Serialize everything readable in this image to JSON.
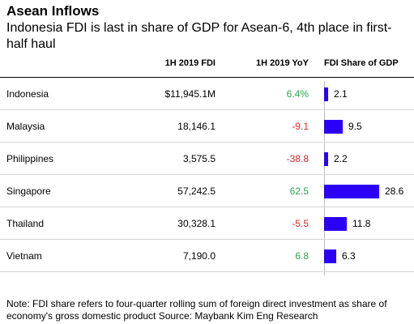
{
  "title": "Asean Inflows",
  "subtitle": "Indonesia FDI is last in share of GDP for Asean-6, 4th place in first-half haul",
  "colors": {
    "bar": "#2b00f6",
    "positive": "#2aa84a",
    "negative": "#e4262c"
  },
  "note": "Note: FDI share refers to four-quarter rolling sum of foreign direct investment as share of economy's gross domestic product Source: Maybank Kim Eng Research",
  "chart_data": {
    "type": "table",
    "columns": [
      "",
      "1H 2019 FDI",
      "1H 2019 YoY",
      "FDI Share of GDP"
    ],
    "rows": [
      {
        "country": "Indonesia",
        "fdi": "$11,945.1M",
        "yoy": "6.4%",
        "yoy_value": 6.4,
        "share": "2.1",
        "share_value": 2.1
      },
      {
        "country": "Malaysia",
        "fdi": "18,146.1",
        "yoy": "-9.1",
        "yoy_value": -9.1,
        "share": "9.5",
        "share_value": 9.5
      },
      {
        "country": "Philippines",
        "fdi": "3,575.5",
        "yoy": "-38.8",
        "yoy_value": -38.8,
        "share": "2.2",
        "share_value": 2.2
      },
      {
        "country": "Singapore",
        "fdi": "57,242.5",
        "yoy": "62.5",
        "yoy_value": 62.5,
        "share": "28.6",
        "share_value": 28.6
      },
      {
        "country": "Thailand",
        "fdi": "30,328.1",
        "yoy": "-5.5",
        "yoy_value": -5.5,
        "share": "11.8",
        "share_value": 11.8
      },
      {
        "country": "Vietnam",
        "fdi": "7,190.0",
        "yoy": "6.8",
        "yoy_value": 6.8,
        "share": "6.3",
        "share_value": 6.3
      }
    ]
  }
}
